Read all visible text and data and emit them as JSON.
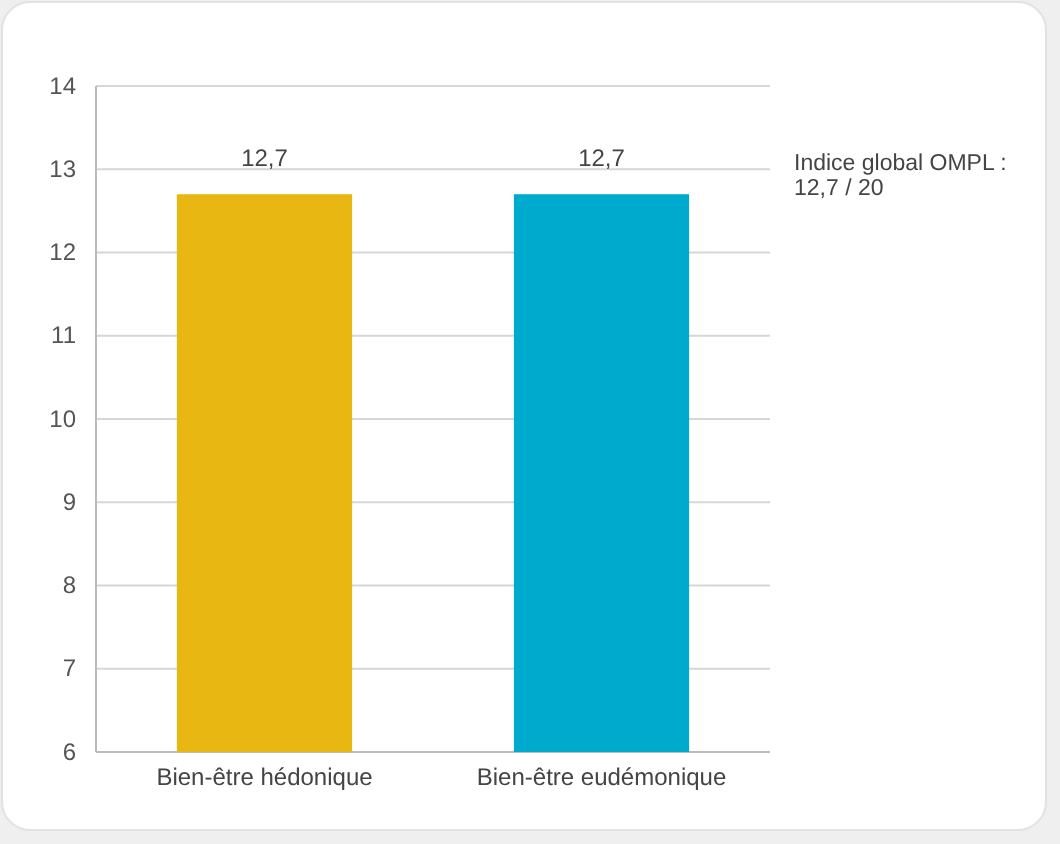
{
  "chart_data": {
    "type": "bar",
    "categories": [
      "Bien-être hédonique",
      "Bien-être eudémonique"
    ],
    "values": [
      12.7,
      12.7
    ],
    "colors": [
      "#e8b711",
      "#00aacd"
    ],
    "value_labels": [
      "12,7",
      "12,7"
    ],
    "ylim": [
      6,
      14
    ],
    "yticks": [
      6,
      7,
      8,
      9,
      10,
      11,
      12,
      13,
      14
    ],
    "grid": "y",
    "annotations": [
      "Indice global OMPL : 12,7 / 20"
    ]
  }
}
